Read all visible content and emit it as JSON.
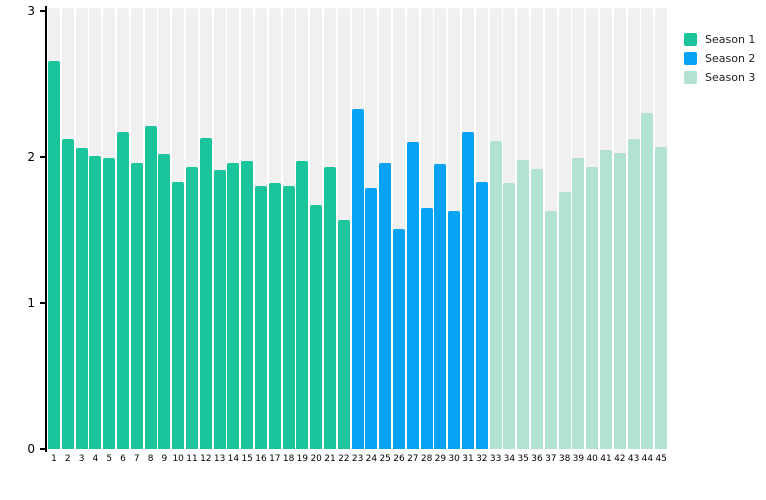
{
  "chart_data": {
    "type": "bar",
    "title": "",
    "xlabel": "",
    "ylabel": "",
    "ylim": [
      0,
      3
    ],
    "yticks": [
      0,
      1,
      2,
      3
    ],
    "grid": false,
    "legend_position": "top-right",
    "plot_background_columns": true,
    "background_column_color": "#f0f0f0",
    "axis_color": "#000000",
    "categories": [
      1,
      2,
      3,
      4,
      5,
      6,
      7,
      8,
      9,
      10,
      11,
      12,
      13,
      14,
      15,
      16,
      17,
      18,
      19,
      20,
      21,
      22,
      23,
      24,
      25,
      26,
      27,
      28,
      29,
      30,
      31,
      32,
      33,
      34,
      35,
      36,
      37,
      38,
      39,
      40,
      41,
      42,
      43,
      44,
      45
    ],
    "series": [
      {
        "name": "Season 1",
        "color": "#1ac59c",
        "episodes": [
          1,
          2,
          3,
          4,
          5,
          6,
          7,
          8,
          9,
          10,
          11,
          12,
          13,
          14,
          15,
          16,
          17,
          18,
          19,
          20,
          21,
          22
        ],
        "values": [
          2.66,
          2.12,
          2.06,
          2.01,
          1.99,
          2.17,
          1.96,
          2.21,
          2.02,
          1.83,
          1.93,
          2.13,
          1.91,
          1.96,
          1.97,
          1.8,
          1.82,
          1.8,
          1.97,
          1.67,
          1.93,
          1.57
        ]
      },
      {
        "name": "Season 2",
        "color": "#06a3f4",
        "episodes": [
          23,
          24,
          25,
          26,
          27,
          28,
          29,
          30,
          31,
          32
        ],
        "values": [
          2.33,
          1.79,
          1.96,
          1.51,
          2.1,
          1.65,
          1.95,
          1.63,
          2.17,
          1.83
        ]
      },
      {
        "name": "Season 3",
        "color": "#b2e2d3",
        "episodes": [
          33,
          34,
          35,
          36,
          37,
          38,
          39,
          40,
          41,
          42,
          43,
          44,
          45
        ],
        "values": [
          2.11,
          1.82,
          1.98,
          1.92,
          1.63,
          1.76,
          1.99,
          1.93,
          2.05,
          2.03,
          2.12,
          2.3,
          2.07
        ]
      }
    ]
  }
}
